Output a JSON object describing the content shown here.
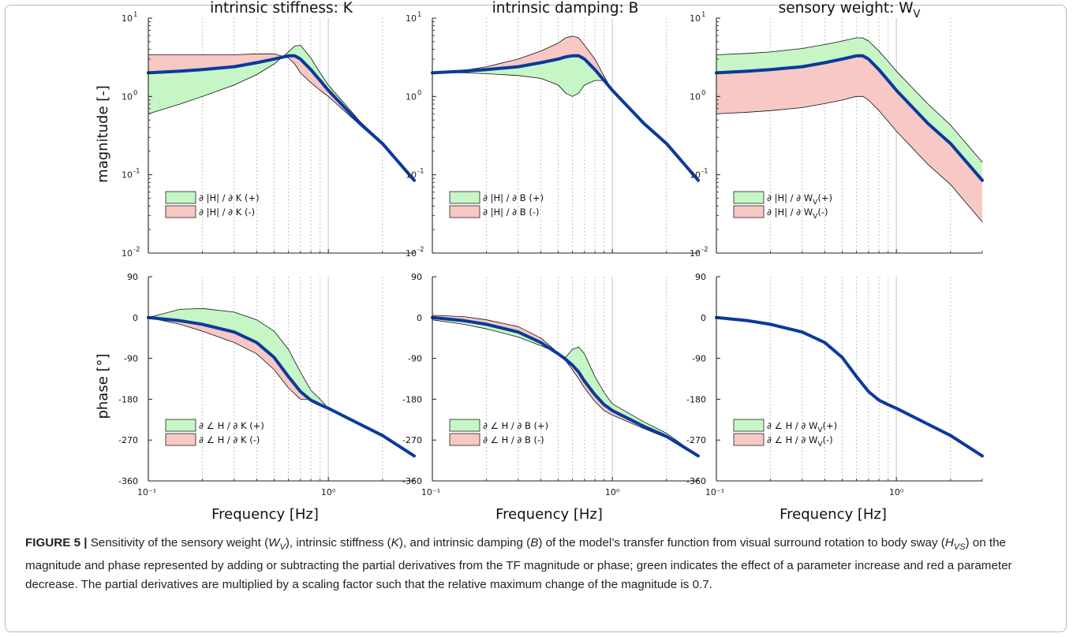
{
  "colors": {
    "line": "#0a3a9c",
    "increase_fill": "#c6f5c6",
    "decrease_fill": "#f7c8c4",
    "grid": "#c8c8c8"
  },
  "figure": {
    "label": "FIGURE 5 |",
    "caption_parts": [
      {
        "t": "Sensitivity of the sensory weight ("
      },
      {
        "t": "W",
        "i": true
      },
      {
        "t": "V",
        "i": true,
        "sub": true
      },
      {
        "t": "), intrinsic stiffness ("
      },
      {
        "t": "K",
        "i": true
      },
      {
        "t": "), and intrinsic damping ("
      },
      {
        "t": "B",
        "i": true
      },
      {
        "t": ") of the model’s transfer function from visual surround rotation to body sway ("
      },
      {
        "t": "H",
        "i": true
      },
      {
        "t": "VS",
        "i": true,
        "sub": true
      },
      {
        "t": ") on the magnitude and phase represented by adding or subtracting the partial derivatives from the TF magnitude or phase; green indicates the effect of a parameter increase and red a parameter decrease. The partial derivatives are multiplied by a scaling factor such that the relative maximum change of the magnitude is 0.7."
      }
    ]
  },
  "labels": {
    "ylabel_magnitude": "magnitude [-]",
    "ylabel_phase": "phase [°]",
    "xlabel": "Frequency [Hz]",
    "x_ticks": [
      "10⁻¹",
      "10⁰"
    ],
    "mag_ticks": [
      [
        "10",
        "1"
      ],
      [
        "10",
        "0"
      ],
      [
        "10",
        "-1"
      ],
      [
        "10",
        "-2"
      ]
    ],
    "phase_ticks": [
      "90",
      "0",
      "-90",
      "-180",
      "-270",
      "-360"
    ]
  },
  "chart_data": [
    {
      "type": "line",
      "title": "intrinsic stiffness: K",
      "panel": "magnitude",
      "x_scale": "log",
      "y_scale": "log",
      "xlim": [
        0.1,
        3
      ],
      "ylim": [
        0.01,
        10
      ],
      "x": [
        0.1,
        0.15,
        0.2,
        0.3,
        0.4,
        0.5,
        0.6,
        0.65,
        0.7,
        0.8,
        0.9,
        1.0,
        1.5,
        2.0,
        3.0
      ],
      "series": [
        {
          "name": "TF magnitude",
          "values": [
            2.0,
            2.1,
            2.2,
            2.4,
            2.7,
            3.0,
            3.3,
            3.3,
            3.0,
            2.2,
            1.6,
            1.2,
            0.45,
            0.25,
            0.085
          ]
        },
        {
          "name": "∂ |H| / ∂ K (+)",
          "values": [
            0.6,
            0.8,
            1.0,
            1.4,
            1.9,
            2.6,
            3.7,
            4.4,
            4.5,
            3.1,
            2.0,
            1.4,
            0.48,
            0.26,
            0.085
          ]
        },
        {
          "name": "∂ |H| / ∂ K (-)",
          "values": [
            3.4,
            3.4,
            3.4,
            3.4,
            3.5,
            3.5,
            3.1,
            2.6,
            2.0,
            1.5,
            1.2,
            1.0,
            0.43,
            0.24,
            0.085
          ]
        }
      ],
      "legend": [
        "∂ |H| / ∂ K (+)",
        "∂ |H| / ∂ K (-)"
      ],
      "legend_position": "lower-left"
    },
    {
      "type": "line",
      "title": "intrinsic damping: B",
      "panel": "magnitude",
      "x_scale": "log",
      "y_scale": "log",
      "xlim": [
        0.1,
        3
      ],
      "ylim": [
        0.01,
        10
      ],
      "x": [
        0.1,
        0.15,
        0.2,
        0.3,
        0.4,
        0.5,
        0.55,
        0.6,
        0.65,
        0.7,
        0.8,
        0.9,
        1.0,
        1.5,
        2.0,
        3.0
      ],
      "series": [
        {
          "name": "TF magnitude",
          "values": [
            2.0,
            2.1,
            2.2,
            2.4,
            2.7,
            3.0,
            3.2,
            3.3,
            3.3,
            3.0,
            2.2,
            1.6,
            1.2,
            0.45,
            0.25,
            0.085
          ]
        },
        {
          "name": "∂ |H| / ∂ B (+)",
          "values": [
            2.0,
            2.0,
            1.95,
            1.85,
            1.7,
            1.4,
            1.1,
            1.0,
            1.1,
            1.4,
            1.6,
            1.6,
            1.2,
            0.45,
            0.25,
            0.085
          ]
        },
        {
          "name": "∂ |H| / ∂ B (-)",
          "values": [
            2.0,
            2.15,
            2.4,
            3.0,
            3.8,
            4.8,
            5.6,
            5.9,
            5.6,
            4.5,
            3.0,
            1.8,
            1.2,
            0.45,
            0.25,
            0.085
          ]
        }
      ],
      "legend": [
        "∂ |H| / ∂ B (+)",
        "∂ |H| / ∂ B (-)"
      ],
      "legend_position": "lower-left"
    },
    {
      "type": "line",
      "title": "sensory weight: W",
      "title_sub": "V",
      "panel": "magnitude",
      "x_scale": "log",
      "y_scale": "log",
      "xlim": [
        0.1,
        3
      ],
      "ylim": [
        0.01,
        10
      ],
      "x": [
        0.1,
        0.15,
        0.2,
        0.3,
        0.4,
        0.5,
        0.6,
        0.65,
        0.7,
        0.8,
        0.9,
        1.0,
        1.5,
        2.0,
        3.0
      ],
      "series": [
        {
          "name": "TF magnitude",
          "values": [
            2.0,
            2.1,
            2.2,
            2.4,
            2.7,
            3.0,
            3.3,
            3.3,
            3.0,
            2.2,
            1.6,
            1.2,
            0.45,
            0.25,
            0.085
          ]
        },
        {
          "name": "∂ |H| / ∂ W V (+)",
          "values": [
            3.4,
            3.55,
            3.7,
            4.1,
            4.6,
            5.1,
            5.6,
            5.6,
            5.1,
            3.8,
            2.8,
            2.1,
            0.8,
            0.43,
            0.145
          ]
        },
        {
          "name": "∂ |H| / ∂ W V (-)",
          "values": [
            0.6,
            0.63,
            0.66,
            0.72,
            0.81,
            0.9,
            1.0,
            1.0,
            0.9,
            0.66,
            0.48,
            0.36,
            0.135,
            0.075,
            0.025
          ]
        }
      ],
      "legend": [
        "∂ |H| / ∂ W V (+)",
        "∂ |H| / ∂ W V (-)"
      ],
      "legend_position": "lower-left"
    },
    {
      "type": "line",
      "panel": "phase",
      "x_scale": "log",
      "xlim": [
        0.1,
        3
      ],
      "ylim": [
        -360,
        90
      ],
      "x": [
        0.1,
        0.15,
        0.2,
        0.3,
        0.4,
        0.5,
        0.6,
        0.7,
        0.8,
        0.9,
        1.0,
        1.5,
        2.0,
        3.0
      ],
      "series": [
        {
          "name": "TF phase",
          "values": [
            0,
            -7,
            -15,
            -32,
            -55,
            -88,
            -130,
            -163,
            -182,
            -192,
            -200,
            -235,
            -260,
            -305
          ]
        },
        {
          "name": "∂ ∠ H / ∂ K (+)",
          "values": [
            0,
            18,
            20,
            12,
            -5,
            -30,
            -70,
            -120,
            -160,
            -180,
            -200,
            -235,
            -260,
            -305
          ]
        },
        {
          "name": "∂ ∠ H / ∂ K (-)",
          "values": [
            0,
            -15,
            -30,
            -55,
            -80,
            -115,
            -155,
            -180,
            -180,
            -190,
            -200,
            -235,
            -260,
            -305
          ]
        }
      ],
      "legend": [
        "∂ ∠ H / ∂ K (+)",
        "∂ ∠ H / ∂ K (-)"
      ],
      "legend_position": "lower-left"
    },
    {
      "type": "line",
      "panel": "phase",
      "x_scale": "log",
      "xlim": [
        0.1,
        3
      ],
      "ylim": [
        -360,
        90
      ],
      "x": [
        0.1,
        0.15,
        0.2,
        0.3,
        0.4,
        0.5,
        0.55,
        0.6,
        0.65,
        0.7,
        0.8,
        0.9,
        1.0,
        1.5,
        2.0,
        3.0
      ],
      "series": [
        {
          "name": "TF phase",
          "values": [
            0,
            -7,
            -15,
            -32,
            -55,
            -80,
            -92,
            -105,
            -120,
            -140,
            -170,
            -192,
            -205,
            -240,
            -262,
            -305
          ]
        },
        {
          "name": "∂ ∠ H / ∂ B (+)",
          "values": [
            -5,
            -15,
            -25,
            -43,
            -62,
            -78,
            -88,
            -70,
            -65,
            -80,
            -130,
            -165,
            -190,
            -230,
            -255,
            -305
          ]
        },
        {
          "name": "∂ ∠ H / ∂ B (-)",
          "values": [
            5,
            2,
            -5,
            -20,
            -45,
            -78,
            -95,
            -115,
            -135,
            -155,
            -185,
            -205,
            -215,
            -245,
            -265,
            -305
          ]
        }
      ],
      "legend": [
        "∂ ∠ H / ∂ B (+)",
        "∂ ∠ H / ∂ B (-)"
      ],
      "legend_position": "lower-left"
    },
    {
      "type": "line",
      "panel": "phase",
      "x_scale": "log",
      "xlim": [
        0.1,
        3
      ],
      "ylim": [
        -360,
        90
      ],
      "x": [
        0.1,
        0.15,
        0.2,
        0.3,
        0.4,
        0.5,
        0.6,
        0.7,
        0.8,
        0.9,
        1.0,
        1.5,
        2.0,
        3.0
      ],
      "series": [
        {
          "name": "TF phase",
          "values": [
            0,
            -7,
            -15,
            -32,
            -55,
            -88,
            -130,
            -163,
            -182,
            -192,
            -200,
            -235,
            -260,
            -305
          ]
        },
        {
          "name": "∂ ∠ H / ∂ W V (+)",
          "values": [
            0,
            -7,
            -15,
            -32,
            -55,
            -88,
            -130,
            -163,
            -182,
            -192,
            -200,
            -235,
            -260,
            -305
          ]
        },
        {
          "name": "∂ ∠ H / ∂ W V (-)",
          "values": [
            0,
            -7,
            -15,
            -32,
            -55,
            -88,
            -130,
            -163,
            -182,
            -192,
            -200,
            -235,
            -260,
            -305
          ]
        }
      ],
      "legend": [
        "∂ ∠ H / ∂ W V (+)",
        "∂ ∠ H / ∂ W V (-)"
      ],
      "legend_position": "lower-left"
    }
  ]
}
